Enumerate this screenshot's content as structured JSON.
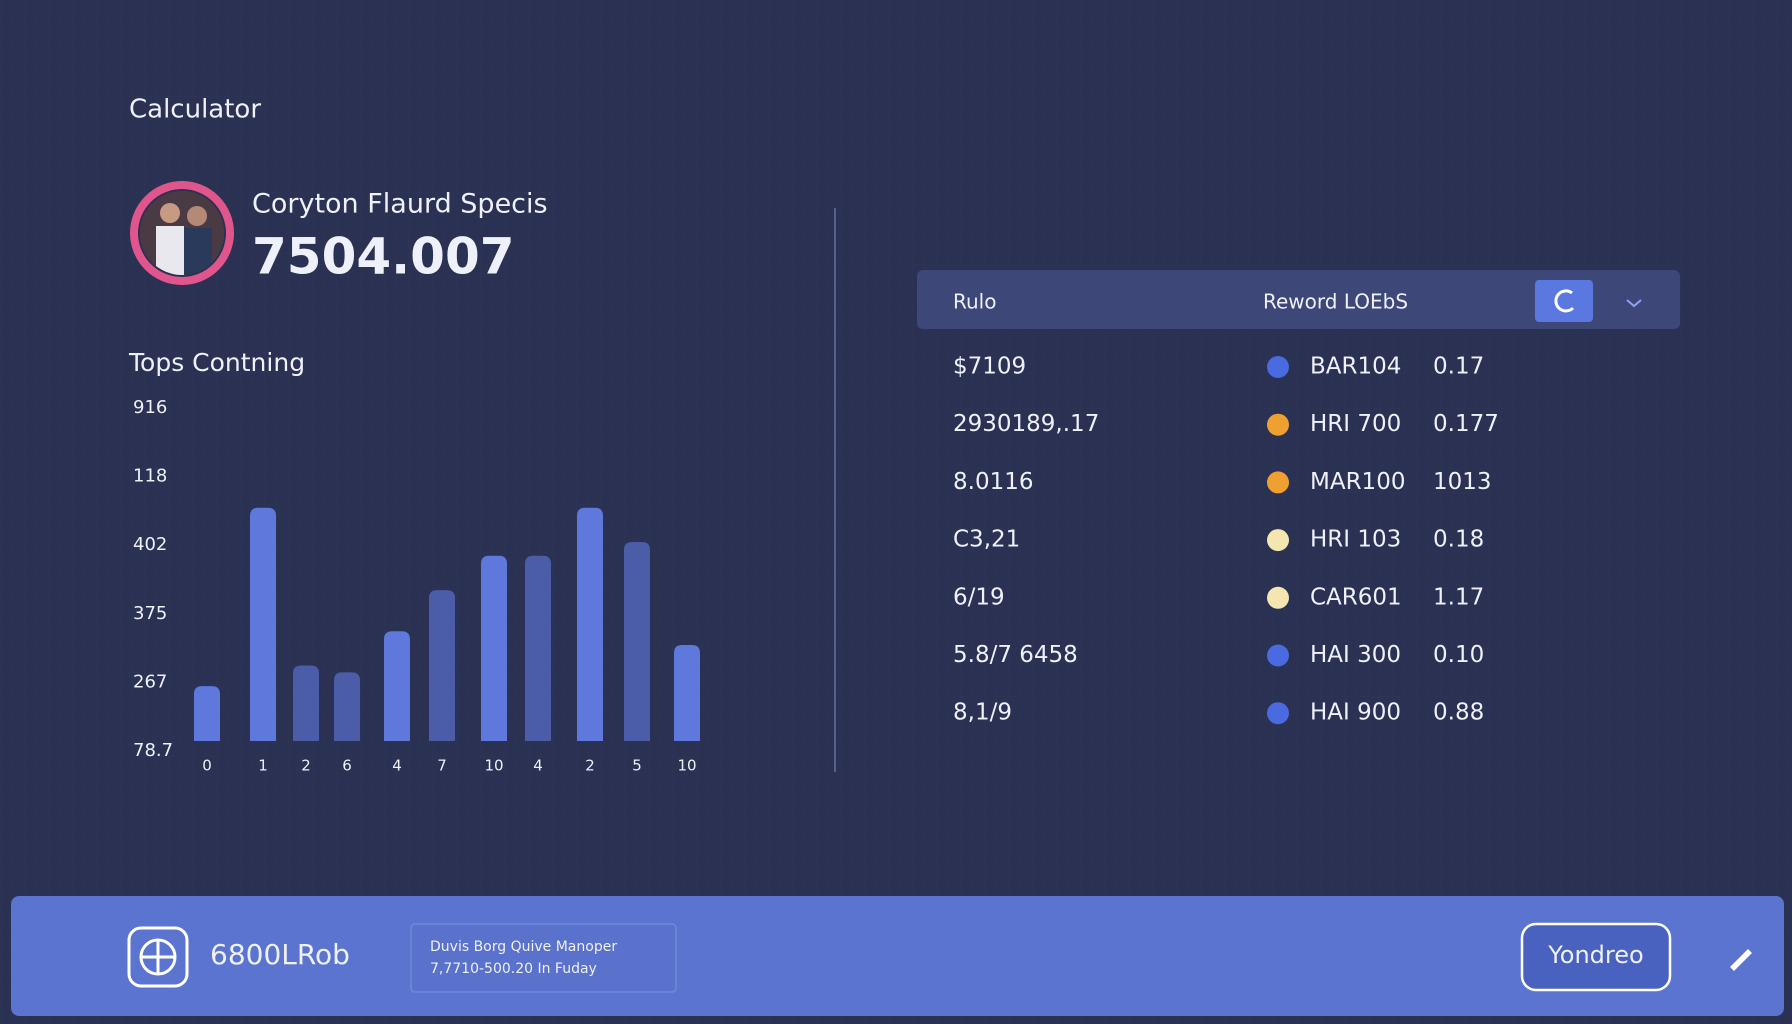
{
  "header": {
    "title": "Calculator"
  },
  "profile": {
    "name": "Coryton Flaurd Specis",
    "value": "7504.007"
  },
  "chart_data": {
    "type": "bar",
    "title": "Tops Contning",
    "y_labels": [
      "78.7",
      "267",
      "375",
      "402",
      "118",
      "916"
    ],
    "categories": [
      "0",
      "1",
      "2",
      "6",
      "4",
      "7",
      "10",
      "4",
      "2",
      "5",
      "10"
    ],
    "values": [
      0.8,
      3.4,
      1.1,
      1.0,
      1.6,
      2.2,
      2.7,
      2.7,
      3.4,
      2.9,
      1.4
    ],
    "colors": [
      "#5f78dc",
      "#5f78dc",
      "#4b5ca8",
      "#4b5ca8",
      "#5f78dc",
      "#4b5ca8",
      "#5f78dc",
      "#4b5ca8",
      "#5f78dc",
      "#4b5ca8",
      "#5f78dc"
    ]
  },
  "table": {
    "headers": [
      "Rulo",
      "Reword LOEbS"
    ],
    "rows": [
      [
        "$7109",
        "BAR104",
        "0.17"
      ],
      [
        "2930189,.17",
        "HRI 700",
        "0.177"
      ],
      [
        "8.0116",
        "MAR100",
        "1013"
      ],
      [
        "C3,21",
        "HRI 103",
        "0.18"
      ],
      [
        "6/19",
        "CAR601",
        "1.17"
      ],
      [
        "5.8/7 6458",
        "HAI 300",
        "0.10"
      ],
      [
        "8,1/9",
        "HAI 900",
        "0.88"
      ]
    ]
  },
  "footer": {
    "brand": "6800LRob",
    "info": [
      "Duvis Borg Quive Manoper",
      "7,7710-500.20 In Fuday"
    ],
    "button": "Yondreo"
  }
}
